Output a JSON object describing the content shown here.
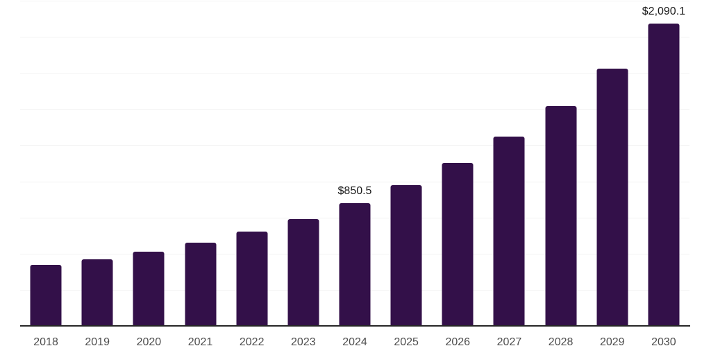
{
  "chart_data": {
    "type": "bar",
    "title": "",
    "xlabel": "",
    "ylabel": "",
    "categories": [
      "2018",
      "2019",
      "2020",
      "2021",
      "2022",
      "2023",
      "2024",
      "2025",
      "2026",
      "2027",
      "2028",
      "2029",
      "2030"
    ],
    "values": [
      420,
      460,
      514,
      575,
      651,
      738,
      850.5,
      975,
      1127,
      1308,
      1519,
      1778,
      2090.1
    ],
    "data_labels": {
      "2024": "$850.5",
      "2030": "$2,090.1"
    },
    "ylim": [
      0,
      2250
    ],
    "gridline_step": 250,
    "grid_on": true,
    "legend_position": "none",
    "colors": {
      "bar_fill": "#331049",
      "gridline": "#f2f2f2",
      "axis_line": "#262626",
      "tick_label": "#4d4d4d",
      "data_label": "#1a1a1a",
      "background": "#ffffff"
    }
  }
}
